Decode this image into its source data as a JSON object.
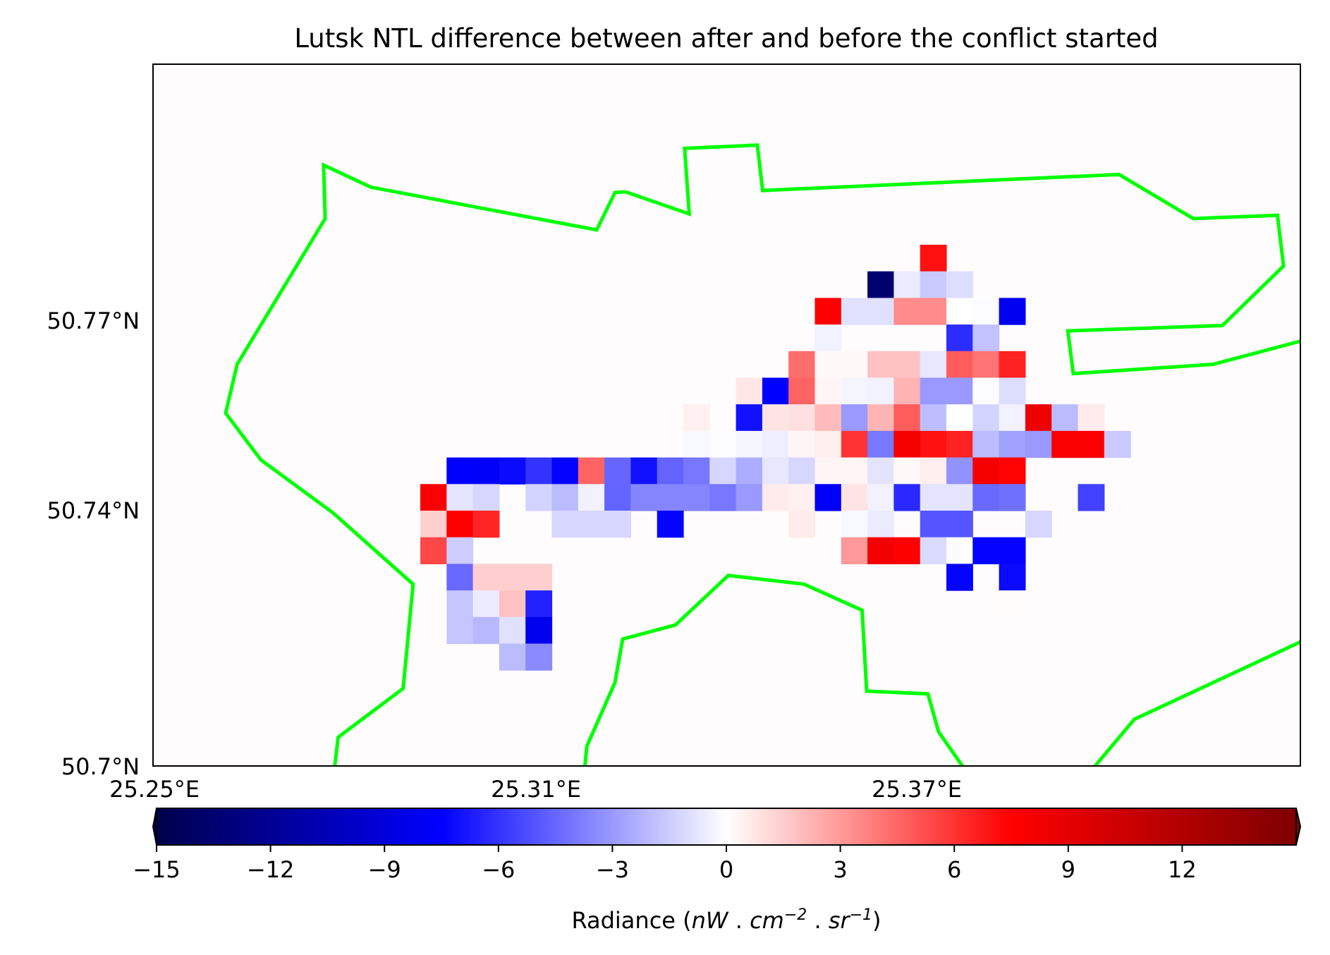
{
  "chart_data": {
    "type": "heatmap",
    "title": "Lutsk NTL difference between after and before the conflict started",
    "y_ticks": [
      "50.77°N",
      "50.74°N",
      "50.7°N"
    ],
    "x_ticks": [
      "25.25°E",
      "25.31°E",
      "25.37°E"
    ],
    "colorbar": {
      "colormap": "seismic",
      "range": [
        -15,
        15
      ],
      "ticks": [
        "−15",
        "−12",
        "−9",
        "−6",
        "−3",
        "0",
        "3",
        "6",
        "9",
        "12"
      ],
      "label_prefix": "Radiance (",
      "label_nW": "nW",
      "label_cm": "cm",
      "label_cm_exp": "−2",
      "label_sr": "sr",
      "label_sr_exp": "−1",
      "label_dot": " . ",
      "label_suffix": ")"
    },
    "boundary_color": "#00ff00",
    "grid": {
      "rows": 20,
      "cols": 19,
      "comment_rows": "row 0 is northernmost; cells are radiance differences",
      "row_offset": 0,
      "col_offset": 0,
      "cells": [
        [
          0,
          9,
          7.0
        ],
        [
          1,
          7,
          -13.5
        ],
        [
          1,
          8,
          -0.6
        ],
        [
          1,
          9,
          -1.6
        ],
        [
          1,
          10,
          -1.0
        ],
        [
          2,
          5,
          7.6
        ],
        [
          2,
          6,
          -0.9
        ],
        [
          2,
          7,
          -0.9
        ],
        [
          2,
          8,
          3.4
        ],
        [
          2,
          9,
          3.4
        ],
        [
          2,
          10,
          0.0
        ],
        [
          2,
          11,
          -0.1
        ],
        [
          2,
          12,
          -8.0
        ],
        [
          3,
          5,
          -0.4
        ],
        [
          3,
          10,
          -6.2
        ],
        [
          3,
          11,
          -1.8
        ],
        [
          4,
          4,
          4.3
        ],
        [
          4,
          5,
          0.2
        ],
        [
          4,
          6,
          0.2
        ],
        [
          4,
          7,
          1.8
        ],
        [
          4,
          8,
          1.8
        ],
        [
          4,
          9,
          -0.7
        ],
        [
          4,
          10,
          4.8
        ],
        [
          4,
          11,
          4.1
        ],
        [
          4,
          12,
          6.5
        ],
        [
          5,
          2,
          0.7
        ],
        [
          5,
          3,
          -7.5
        ],
        [
          5,
          4,
          4.6
        ],
        [
          5,
          5,
          0.3
        ],
        [
          5,
          6,
          -0.3
        ],
        [
          5,
          7,
          -0.4
        ],
        [
          5,
          8,
          2.2
        ],
        [
          5,
          9,
          -3.0
        ],
        [
          5,
          10,
          -3.0
        ],
        [
          5,
          11,
          -0.1
        ],
        [
          5,
          12,
          -1.0
        ],
        [
          6,
          0,
          0.4
        ],
        [
          6,
          2,
          -7.0
        ],
        [
          6,
          3,
          0.8
        ],
        [
          6,
          4,
          0.9
        ],
        [
          6,
          5,
          2.0
        ],
        [
          6,
          6,
          -3.0
        ],
        [
          6,
          7,
          2.2
        ],
        [
          6,
          8,
          4.8
        ],
        [
          6,
          9,
          -1.9
        ],
        [
          6,
          10,
          0.0
        ],
        [
          6,
          11,
          -1.3
        ],
        [
          6,
          12,
          -0.4
        ],
        [
          6,
          13,
          8.5
        ],
        [
          6,
          14,
          -2.0
        ],
        [
          6,
          15,
          0.6
        ],
        [
          7,
          0,
          -0.2
        ],
        [
          7,
          1,
          -0.1
        ],
        [
          7,
          2,
          -0.3
        ],
        [
          7,
          3,
          -0.5
        ],
        [
          7,
          4,
          0.3
        ],
        [
          7,
          5,
          0.5
        ],
        [
          7,
          6,
          6.0
        ],
        [
          7,
          7,
          -4.0
        ],
        [
          7,
          8,
          8.0
        ],
        [
          7,
          9,
          7.0
        ],
        [
          7,
          10,
          6.5
        ],
        [
          7,
          11,
          -2.0
        ],
        [
          7,
          12,
          -2.8
        ],
        [
          7,
          13,
          -3.0
        ],
        [
          7,
          14,
          7.8
        ],
        [
          7,
          15,
          7.8
        ],
        [
          7,
          16,
          -1.6
        ],
        [
          8,
          -9,
          -7.5
        ],
        [
          8,
          -8,
          -7.8
        ],
        [
          8,
          -7,
          -7.2
        ],
        [
          8,
          -6,
          -6.0
        ],
        [
          8,
          -5,
          -7.4
        ],
        [
          8,
          -4,
          4.6
        ],
        [
          8,
          -3,
          -4.5
        ],
        [
          8,
          -2,
          -7.0
        ],
        [
          8,
          -1,
          -4.6
        ],
        [
          8,
          0,
          -4.0
        ],
        [
          8,
          1,
          -1.2
        ],
        [
          8,
          2,
          -2.4
        ],
        [
          8,
          3,
          -0.7
        ],
        [
          8,
          4,
          -1.2
        ],
        [
          8,
          5,
          0.3
        ],
        [
          8,
          6,
          0.3
        ],
        [
          8,
          7,
          -0.8
        ],
        [
          8,
          8,
          0.2
        ],
        [
          8,
          9,
          0.5
        ],
        [
          8,
          10,
          -3.2
        ],
        [
          8,
          11,
          8.0
        ],
        [
          8,
          12,
          7.4
        ],
        [
          9,
          -10,
          7.8
        ],
        [
          9,
          -9,
          -0.8
        ],
        [
          9,
          -8,
          -1.2
        ],
        [
          9,
          -6,
          -1.3
        ],
        [
          9,
          -5,
          -2.0
        ],
        [
          9,
          -4,
          -0.4
        ],
        [
          9,
          -3,
          -4.6
        ],
        [
          9,
          -2,
          -3.6
        ],
        [
          9,
          -1,
          -3.6
        ],
        [
          9,
          0,
          -3.6
        ],
        [
          9,
          1,
          -4.0
        ],
        [
          9,
          2,
          -3.0
        ],
        [
          9,
          3,
          0.6
        ],
        [
          9,
          4,
          0.4
        ],
        [
          9,
          5,
          -7.8
        ],
        [
          9,
          6,
          0.8
        ],
        [
          9,
          7,
          -0.4
        ],
        [
          9,
          8,
          -6.3
        ],
        [
          9,
          9,
          -0.8
        ],
        [
          9,
          10,
          -0.8
        ],
        [
          9,
          11,
          -4.4
        ],
        [
          9,
          12,
          -4.2
        ],
        [
          9,
          15,
          -5.6
        ],
        [
          10,
          -10,
          1.4
        ],
        [
          10,
          -9,
          7.5
        ],
        [
          10,
          -8,
          6.4
        ],
        [
          10,
          -5,
          -1.2
        ],
        [
          10,
          -4,
          -1.2
        ],
        [
          10,
          -3,
          -1.2
        ],
        [
          10,
          -1,
          -7.4
        ],
        [
          10,
          4,
          0.6
        ],
        [
          10,
          6,
          -0.2
        ],
        [
          10,
          7,
          -0.6
        ],
        [
          10,
          9,
          -5.0
        ],
        [
          10,
          10,
          -5.0
        ],
        [
          10,
          13,
          -1.2
        ],
        [
          11,
          -10,
          5.4
        ],
        [
          11,
          -9,
          -1.5
        ],
        [
          11,
          6,
          3.0
        ],
        [
          11,
          7,
          8.2
        ],
        [
          11,
          8,
          7.7
        ],
        [
          11,
          9,
          -1.1
        ],
        [
          11,
          10,
          -0.1
        ],
        [
          11,
          11,
          -7.4
        ],
        [
          11,
          12,
          -7.4
        ],
        [
          12,
          -9,
          -4.4
        ],
        [
          12,
          -8,
          1.4
        ],
        [
          12,
          -7,
          1.4
        ],
        [
          12,
          -6,
          1.4
        ],
        [
          12,
          10,
          -7.4
        ],
        [
          12,
          12,
          -7.2
        ],
        [
          13,
          -9,
          -1.7
        ],
        [
          13,
          -8,
          -0.6
        ],
        [
          13,
          -7,
          1.8
        ],
        [
          13,
          -6,
          -6.5
        ],
        [
          13,
          12,
          0.1
        ],
        [
          14,
          -9,
          -1.7
        ],
        [
          14,
          -8,
          -2.1
        ],
        [
          14,
          -7,
          -0.9
        ],
        [
          14,
          -6,
          -8.3
        ],
        [
          15,
          -7,
          -2.0
        ],
        [
          15,
          -6,
          -3.4
        ]
      ]
    },
    "extent": {
      "lon": [
        25.25,
        25.4
      ],
      "lat": [
        50.7,
        50.805
      ]
    },
    "boundary": [
      [
        25.3118,
        50.7859
      ],
      [
        25.3201,
        50.7826
      ],
      [
        25.3195,
        50.7924
      ],
      [
        25.329,
        50.7929
      ],
      [
        25.3297,
        50.7861
      ],
      [
        25.3763,
        50.7885
      ],
      [
        25.386,
        50.7819
      ],
      [
        25.397,
        50.7824
      ],
      [
        25.3978,
        50.7748
      ],
      [
        25.3898,
        50.7659
      ],
      [
        25.3696,
        50.7651
      ],
      [
        25.3703,
        50.7587
      ],
      [
        25.3886,
        50.7601
      ],
      [
        25.4008,
        50.7638
      ],
      [
        25.4106,
        50.7587
      ],
      [
        25.4136,
        50.7396
      ],
      [
        25.4055,
        50.7215
      ],
      [
        25.3783,
        50.707
      ],
      [
        25.3728,
        50.6995
      ],
      [
        25.3652,
        50.695
      ],
      [
        25.3574,
        50.6974
      ],
      [
        25.3527,
        50.7051
      ],
      [
        25.3513,
        50.7108
      ],
      [
        25.3433,
        50.7112
      ],
      [
        25.3427,
        50.7233
      ],
      [
        25.3351,
        50.7272
      ],
      [
        25.3252,
        50.7285
      ],
      [
        25.3183,
        50.7211
      ],
      [
        25.3114,
        50.719
      ],
      [
        25.3104,
        50.7125
      ],
      [
        25.3067,
        50.7029
      ],
      [
        25.3063,
        50.6979
      ],
      [
        25.2973,
        50.6925
      ],
      [
        25.284,
        50.6928
      ],
      [
        25.2835,
        50.6957
      ],
      [
        25.2734,
        50.6964
      ],
      [
        25.2742,
        50.7043
      ],
      [
        25.2827,
        50.7116
      ],
      [
        25.284,
        50.7272
      ],
      [
        25.2735,
        50.7379
      ],
      [
        25.2641,
        50.7458
      ],
      [
        25.2595,
        50.7528
      ],
      [
        25.261,
        50.7601
      ],
      [
        25.2725,
        50.7819
      ],
      [
        25.2723,
        50.7899
      ],
      [
        25.2785,
        50.7866
      ],
      [
        25.308,
        50.7802
      ],
      [
        25.3104,
        50.7858
      ],
      [
        25.3118,
        50.7859
      ]
    ]
  }
}
